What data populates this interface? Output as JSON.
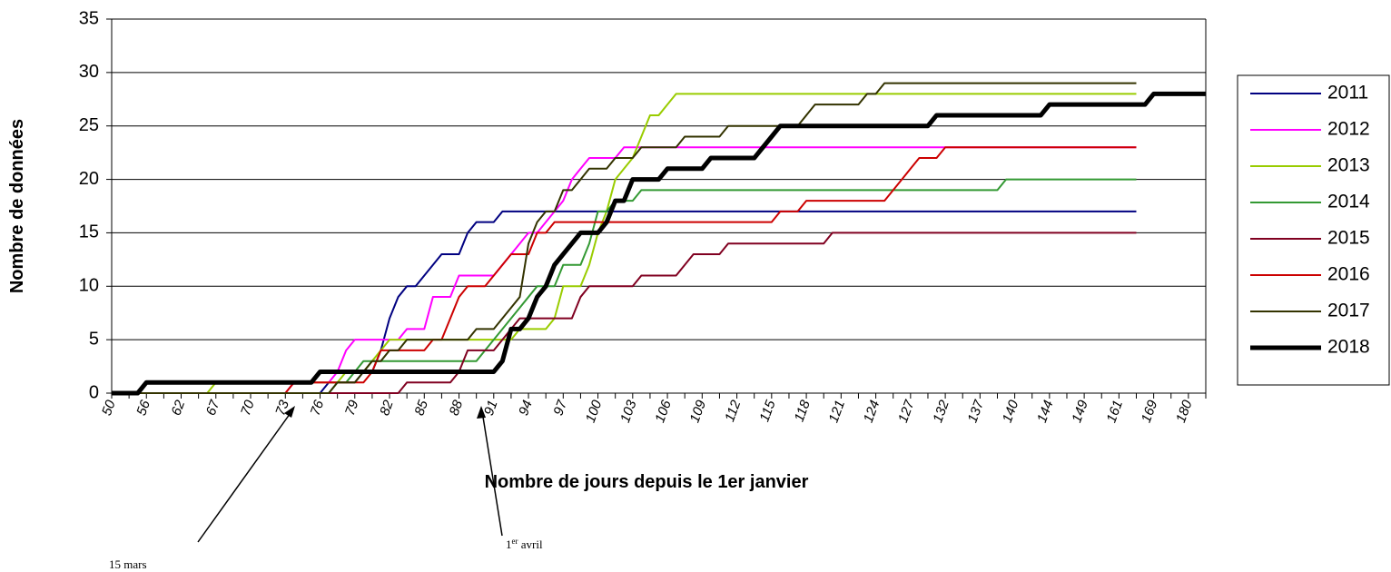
{
  "chart_data": {
    "type": "line",
    "xlabel": "Nombre de jours depuis le 1er janvier",
    "ylabel": "Nombre de données",
    "ylim": [
      0,
      35
    ],
    "yticks": [
      0,
      5,
      10,
      15,
      20,
      25,
      30,
      35
    ],
    "grid": true,
    "legend": "right",
    "annotations": [
      {
        "text": "15 mars"
      },
      {
        "text_parts": [
          "1",
          "er",
          " avril"
        ]
      }
    ],
    "categories": [
      50,
      null,
      null,
      null,
      56,
      null,
      null,
      null,
      62,
      null,
      null,
      null,
      67,
      null,
      null,
      null,
      70,
      null,
      null,
      null,
      73,
      null,
      null,
      null,
      76,
      null,
      null,
      null,
      79,
      null,
      null,
      null,
      82,
      null,
      null,
      null,
      85,
      null,
      null,
      null,
      88,
      null,
      null,
      null,
      91,
      null,
      null,
      null,
      94,
      null,
      null,
      null,
      97,
      null,
      null,
      null,
      100,
      null,
      null,
      null,
      103,
      null,
      null,
      null,
      106,
      null,
      null,
      null,
      109,
      null,
      null,
      null,
      112,
      null,
      null,
      null,
      115,
      null,
      null,
      null,
      118,
      null,
      null,
      null,
      121,
      null,
      null,
      null,
      124,
      null,
      null,
      null,
      127,
      null,
      null,
      null,
      132,
      null,
      null,
      null,
      137,
      null,
      null,
      null,
      140,
      null,
      null,
      null,
      144,
      null,
      null,
      null,
      149,
      null,
      null,
      null,
      161,
      null,
      null,
      null,
      169,
      null,
      null,
      null,
      180,
      null,
      null
    ],
    "series": [
      {
        "name": "2011",
        "color": "#000080",
        "width": 2,
        "values": [
          0,
          0,
          0,
          0,
          0,
          0,
          0,
          0,
          0,
          0,
          0,
          0,
          0,
          0,
          0,
          0,
          0,
          0,
          0,
          0,
          0,
          0,
          0,
          0,
          0,
          1,
          1,
          1,
          1,
          2,
          2,
          4,
          7,
          9,
          10,
          10,
          11,
          12,
          13,
          13,
          13,
          15,
          16,
          16,
          16,
          17,
          17,
          17,
          17,
          17,
          17,
          17,
          17,
          17,
          17,
          17,
          17,
          17,
          17,
          17,
          17,
          17,
          17,
          17,
          17,
          17,
          17,
          17,
          17,
          17,
          17,
          17,
          17,
          17,
          17,
          17,
          17,
          17,
          17,
          17,
          17,
          17,
          17,
          17,
          17,
          17,
          17,
          17,
          17,
          17,
          17,
          17,
          17,
          17,
          17,
          17,
          17,
          17,
          17,
          17,
          17,
          17,
          17,
          17,
          17,
          17,
          17,
          17,
          17,
          17,
          17,
          17,
          17,
          17,
          17,
          17,
          17,
          17,
          17,
          null,
          null,
          null,
          null,
          null,
          null,
          null,
          null
        ]
      },
      {
        "name": "2012",
        "color": "#ff00ff",
        "width": 2,
        "values": [
          0,
          0,
          0,
          0,
          0,
          0,
          0,
          0,
          0,
          0,
          0,
          0,
          0,
          0,
          0,
          0,
          0,
          0,
          0,
          0,
          0,
          1,
          1,
          1,
          1,
          1,
          2,
          4,
          5,
          5,
          5,
          5,
          5,
          5,
          6,
          6,
          6,
          9,
          9,
          9,
          11,
          11,
          11,
          11,
          11,
          12,
          13,
          14,
          15,
          15,
          16,
          17,
          18,
          20,
          21,
          22,
          22,
          22,
          22,
          23,
          23,
          23,
          23,
          23,
          23,
          23,
          23,
          23,
          23,
          23,
          23,
          23,
          23,
          23,
          23,
          23,
          23,
          23,
          23,
          23,
          23,
          23,
          23,
          23,
          23,
          23,
          23,
          23,
          23,
          23,
          23,
          23,
          23,
          23,
          23,
          23,
          23,
          23,
          23,
          23,
          23,
          23,
          23,
          23,
          23,
          23,
          23,
          23,
          23,
          23,
          23,
          23,
          23,
          23,
          23,
          23,
          23,
          23,
          23,
          null,
          null,
          null,
          null,
          null,
          null,
          null,
          null
        ]
      },
      {
        "name": "2013",
        "color": "#99cc00",
        "width": 2,
        "values": [
          0,
          0,
          0,
          0,
          0,
          0,
          0,
          0,
          0,
          0,
          0,
          0,
          1,
          1,
          1,
          1,
          1,
          1,
          1,
          1,
          1,
          1,
          1,
          1,
          1,
          1,
          1,
          2,
          2,
          2,
          3,
          4,
          5,
          5,
          5,
          5,
          5,
          5,
          5,
          5,
          5,
          5,
          5,
          5,
          5,
          5,
          5,
          6,
          6,
          6,
          6,
          7,
          10,
          10,
          10,
          12,
          15,
          17,
          20,
          21,
          22,
          24,
          26,
          26,
          27,
          28,
          28,
          28,
          28,
          28,
          28,
          28,
          28,
          28,
          28,
          28,
          28,
          28,
          28,
          28,
          28,
          28,
          28,
          28,
          28,
          28,
          28,
          28,
          28,
          28,
          28,
          28,
          28,
          28,
          28,
          28,
          28,
          28,
          28,
          28,
          28,
          28,
          28,
          28,
          28,
          28,
          28,
          28,
          28,
          28,
          28,
          28,
          28,
          28,
          28,
          28,
          28,
          28,
          28,
          null,
          null,
          null,
          null,
          null,
          null,
          null,
          null
        ]
      },
      {
        "name": "2014",
        "color": "#339933",
        "width": 2,
        "values": [
          0,
          0,
          0,
          0,
          0,
          0,
          0,
          0,
          0,
          0,
          0,
          0,
          0,
          0,
          0,
          0,
          0,
          0,
          0,
          0,
          0,
          0,
          0,
          0,
          0,
          0,
          1,
          1,
          2,
          3,
          3,
          3,
          3,
          3,
          3,
          3,
          3,
          3,
          3,
          3,
          3,
          3,
          3,
          4,
          5,
          6,
          7,
          8,
          9,
          10,
          10,
          10,
          12,
          12,
          12,
          14,
          17,
          17,
          18,
          18,
          18,
          19,
          19,
          19,
          19,
          19,
          19,
          19,
          19,
          19,
          19,
          19,
          19,
          19,
          19,
          19,
          19,
          19,
          19,
          19,
          19,
          19,
          19,
          19,
          19,
          19,
          19,
          19,
          19,
          19,
          19,
          19,
          19,
          19,
          19,
          19,
          19,
          19,
          19,
          19,
          19,
          19,
          19,
          20,
          20,
          20,
          20,
          20,
          20,
          20,
          20,
          20,
          20,
          20,
          20,
          20,
          20,
          20,
          20,
          null,
          null,
          null,
          null,
          null,
          null,
          null,
          null
        ]
      },
      {
        "name": "2015",
        "color": "#800020",
        "width": 2,
        "values": [
          0,
          0,
          0,
          0,
          0,
          0,
          0,
          0,
          0,
          0,
          0,
          0,
          0,
          0,
          0,
          0,
          0,
          0,
          0,
          0,
          0,
          0,
          0,
          0,
          0,
          0,
          0,
          0,
          0,
          0,
          0,
          0,
          0,
          0,
          1,
          1,
          1,
          1,
          1,
          1,
          2,
          4,
          4,
          4,
          4,
          5,
          6,
          7,
          7,
          7,
          7,
          7,
          7,
          7,
          9,
          10,
          10,
          10,
          10,
          10,
          10,
          11,
          11,
          11,
          11,
          11,
          12,
          13,
          13,
          13,
          13,
          14,
          14,
          14,
          14,
          14,
          14,
          14,
          14,
          14,
          14,
          14,
          14,
          15,
          15,
          15,
          15,
          15,
          15,
          15,
          15,
          15,
          15,
          15,
          15,
          15,
          15,
          15,
          15,
          15,
          15,
          15,
          15,
          15,
          15,
          15,
          15,
          15,
          15,
          15,
          15,
          15,
          15,
          15,
          15,
          15,
          15,
          15,
          15,
          null,
          null,
          null,
          null,
          null,
          null,
          null,
          null
        ]
      },
      {
        "name": "2016",
        "color": "#cc0000",
        "width": 2,
        "values": [
          0,
          0,
          0,
          0,
          0,
          0,
          0,
          0,
          0,
          0,
          0,
          0,
          0,
          0,
          0,
          0,
          0,
          0,
          0,
          0,
          0,
          1,
          1,
          1,
          1,
          1,
          1,
          1,
          1,
          1,
          2,
          4,
          4,
          4,
          4,
          4,
          4,
          5,
          5,
          7,
          9,
          10,
          10,
          10,
          11,
          12,
          13,
          13,
          13,
          15,
          15,
          16,
          16,
          16,
          16,
          16,
          16,
          16,
          16,
          16,
          16,
          16,
          16,
          16,
          16,
          16,
          16,
          16,
          16,
          16,
          16,
          16,
          16,
          16,
          16,
          16,
          16,
          17,
          17,
          17,
          18,
          18,
          18,
          18,
          18,
          18,
          18,
          18,
          18,
          18,
          19,
          20,
          21,
          22,
          22,
          22,
          23,
          23,
          23,
          23,
          23,
          23,
          23,
          23,
          23,
          23,
          23,
          23,
          23,
          23,
          23,
          23,
          23,
          23,
          23,
          23,
          23,
          23,
          23,
          null,
          null,
          null,
          null,
          null,
          null,
          null,
          null
        ]
      },
      {
        "name": "2017",
        "color": "#333300",
        "width": 2,
        "values": [
          0,
          0,
          0,
          0,
          0,
          0,
          0,
          0,
          0,
          0,
          0,
          0,
          0,
          0,
          0,
          0,
          0,
          0,
          0,
          0,
          0,
          0,
          0,
          0,
          0,
          0,
          1,
          1,
          1,
          2,
          3,
          3,
          4,
          4,
          5,
          5,
          5,
          5,
          5,
          5,
          5,
          5,
          6,
          6,
          6,
          7,
          8,
          9,
          14,
          16,
          17,
          17,
          19,
          19,
          20,
          21,
          21,
          21,
          22,
          22,
          22,
          23,
          23,
          23,
          23,
          23,
          24,
          24,
          24,
          24,
          24,
          25,
          25,
          25,
          25,
          25,
          25,
          25,
          25,
          25,
          26,
          27,
          27,
          27,
          27,
          27,
          27,
          28,
          28,
          29,
          29,
          29,
          29,
          29,
          29,
          29,
          29,
          29,
          29,
          29,
          29,
          29,
          29,
          29,
          29,
          29,
          29,
          29,
          29,
          29,
          29,
          29,
          29,
          29,
          29,
          29,
          29,
          29,
          29,
          null,
          null,
          null,
          null,
          null,
          null,
          null,
          null
        ]
      },
      {
        "name": "2018",
        "color": "#000000",
        "width": 5,
        "values": [
          0,
          0,
          0,
          0,
          1,
          1,
          1,
          1,
          1,
          1,
          1,
          1,
          1,
          1,
          1,
          1,
          1,
          1,
          1,
          1,
          1,
          1,
          1,
          1,
          2,
          2,
          2,
          2,
          2,
          2,
          2,
          2,
          2,
          2,
          2,
          2,
          2,
          2,
          2,
          2,
          2,
          2,
          2,
          2,
          2,
          3,
          6,
          6,
          7,
          9,
          10,
          12,
          13,
          14,
          15,
          15,
          15,
          16,
          18,
          18,
          20,
          20,
          20,
          20,
          21,
          21,
          21,
          21,
          21,
          22,
          22,
          22,
          22,
          22,
          22,
          23,
          24,
          25,
          25,
          25,
          25,
          25,
          25,
          25,
          25,
          25,
          25,
          25,
          25,
          25,
          25,
          25,
          25,
          25,
          25,
          26,
          26,
          26,
          26,
          26,
          26,
          26,
          26,
          26,
          26,
          26,
          26,
          26,
          27,
          27,
          27,
          27,
          27,
          27,
          27,
          27,
          27,
          27,
          27,
          27,
          28,
          28,
          28,
          28,
          28,
          28,
          28
        ]
      }
    ]
  }
}
